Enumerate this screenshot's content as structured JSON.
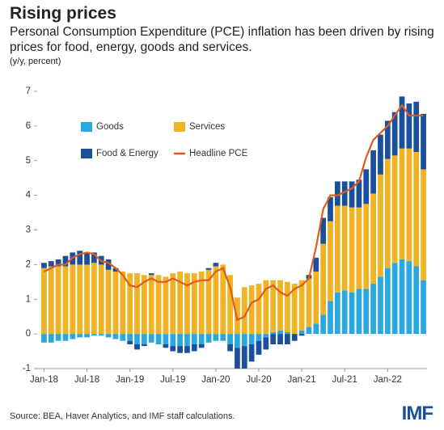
{
  "chart_data": {
    "type": "bar",
    "stacked": true,
    "title": "Rising prices",
    "subtitle": "Personal Consumption Expenditure (PCE) inflation has been driven by rising prices for food, energy, goods and services.",
    "y_label": "(y/y, percent)",
    "source": "Source: BEA, Haver Analytics, and IMF staff calculations.",
    "logo": "IMF",
    "categories": [
      "Jan-18",
      null,
      null,
      null,
      null,
      null,
      "Jul-18",
      null,
      null,
      null,
      null,
      null,
      "Jan-19",
      null,
      null,
      null,
      null,
      null,
      "Jul-19",
      null,
      null,
      null,
      null,
      null,
      "Jan-20",
      null,
      null,
      null,
      null,
      null,
      "Jul-20",
      null,
      null,
      null,
      null,
      null,
      "Jan-21",
      null,
      null,
      null,
      null,
      null,
      "Jul-21",
      null,
      null,
      null,
      null,
      null,
      "Jan-22",
      null,
      null,
      null,
      null,
      null
    ],
    "series": [
      {
        "name": "Goods",
        "color": "#29a8e0",
        "values": [
          -0.25,
          -0.25,
          -0.2,
          -0.2,
          -0.15,
          -0.1,
          -0.1,
          -0.05,
          -0.05,
          -0.1,
          -0.15,
          -0.2,
          -0.2,
          -0.3,
          -0.3,
          -0.25,
          -0.3,
          -0.3,
          -0.35,
          -0.35,
          -0.35,
          -0.3,
          -0.3,
          -0.25,
          -0.2,
          -0.2,
          -0.3,
          -0.4,
          -0.35,
          -0.3,
          -0.2,
          -0.1,
          0.05,
          0.1,
          0.05,
          0.0,
          0.1,
          0.2,
          0.3,
          0.55,
          0.95,
          1.2,
          1.25,
          1.2,
          1.3,
          1.3,
          1.45,
          1.65,
          1.9,
          2.05,
          2.15,
          2.1,
          1.95,
          1.55
        ]
      },
      {
        "name": "Services",
        "color": "#f0b323",
        "values": [
          1.9,
          1.95,
          1.95,
          1.95,
          2.0,
          2.0,
          2.0,
          2.05,
          2.0,
          1.85,
          1.8,
          1.8,
          1.75,
          1.75,
          1.7,
          1.7,
          1.7,
          1.65,
          1.75,
          1.8,
          1.75,
          1.75,
          1.8,
          1.85,
          1.95,
          2.0,
          1.7,
          1.05,
          1.35,
          1.4,
          1.45,
          1.55,
          1.5,
          1.45,
          1.45,
          1.45,
          1.45,
          1.4,
          1.5,
          2.05,
          2.3,
          2.5,
          2.45,
          2.45,
          2.35,
          2.45,
          2.6,
          2.95,
          3.15,
          3.1,
          3.2,
          3.25,
          3.3,
          3.2
        ]
      },
      {
        "name": "Food & Energy",
        "color": "#1a4f9c",
        "values": [
          0.15,
          0.15,
          0.2,
          0.3,
          0.35,
          0.4,
          0.35,
          0.3,
          0.25,
          0.3,
          0.1,
          0.0,
          -0.1,
          -0.15,
          -0.05,
          0.05,
          0.0,
          -0.1,
          -0.15,
          -0.2,
          -0.2,
          -0.2,
          -0.1,
          0.05,
          0.1,
          0.0,
          -0.2,
          -0.6,
          -0.65,
          -0.5,
          -0.4,
          -0.35,
          -0.3,
          -0.3,
          -0.3,
          -0.2,
          -0.05,
          0.1,
          0.4,
          0.75,
          0.7,
          0.7,
          0.7,
          0.75,
          0.8,
          1.0,
          1.25,
          1.15,
          1.1,
          1.25,
          1.5,
          1.3,
          1.45,
          1.6
        ]
      },
      {
        "name": "Headline PCE",
        "type": "line",
        "color": "#e05a1e",
        "values": [
          1.8,
          1.9,
          2.0,
          2.0,
          2.2,
          2.3,
          2.35,
          2.3,
          2.1,
          2.05,
          1.9,
          1.7,
          1.4,
          1.35,
          1.5,
          1.6,
          1.5,
          1.5,
          1.6,
          1.5,
          1.4,
          1.5,
          1.55,
          1.55,
          1.8,
          1.9,
          1.35,
          0.4,
          0.5,
          0.9,
          1.0,
          1.3,
          1.4,
          1.2,
          1.1,
          1.3,
          1.4,
          1.6,
          2.5,
          3.6,
          4.0,
          4.0,
          4.1,
          4.2,
          4.4,
          5.1,
          5.6,
          5.8,
          6.0,
          6.3,
          6.6,
          6.3,
          6.3,
          6.3
        ]
      }
    ],
    "ylim": [
      -1,
      7
    ],
    "yticks": [
      -1,
      0,
      1,
      2,
      3,
      4,
      5,
      6,
      7
    ],
    "legend": "upper left"
  }
}
